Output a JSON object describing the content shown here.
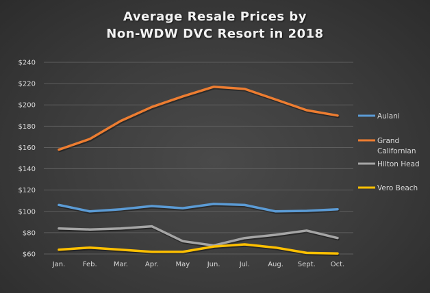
{
  "chart_data": {
    "type": "line",
    "title": "Average Resale Prices by Non-WDW DVC Resort in 2018",
    "title_lines": [
      "Average Resale Prices by",
      "Non-WDW  DVC Resort in 2018"
    ],
    "xlabel": "",
    "ylabel": "",
    "categories": [
      "Jan.",
      "Feb.",
      "Mar.",
      "Apr.",
      "May",
      "Jun.",
      "Jul.",
      "Aug.",
      "Sept.",
      "Oct."
    ],
    "ylim": [
      60,
      240
    ],
    "yticks": [
      60,
      80,
      100,
      120,
      140,
      160,
      180,
      200,
      220,
      240
    ],
    "ytick_labels": [
      "$60",
      "$80",
      "$100",
      "$120",
      "$140",
      "$160",
      "$180",
      "$200",
      "$220",
      "$240"
    ],
    "grid": true,
    "legend_position": "right",
    "series": [
      {
        "name": "Aulani",
        "legend_lines": [
          "Aulani"
        ],
        "color": "#5b9bd5",
        "values": [
          106,
          100,
          102,
          105,
          103,
          107,
          106,
          100,
          100.5,
          102
        ]
      },
      {
        "name": "Grand Californian",
        "legend_lines": [
          "Grand",
          "Californian"
        ],
        "color": "#ed7d31",
        "values": [
          158,
          168,
          185,
          198,
          208,
          217,
          215,
          205,
          195,
          190
        ]
      },
      {
        "name": "Hilton Head",
        "legend_lines": [
          "Hilton Head"
        ],
        "color": "#a5a5a5",
        "values": [
          84,
          83,
          84,
          86,
          72,
          68,
          75,
          78,
          82,
          75
        ]
      },
      {
        "name": "Vero Beach",
        "legend_lines": [
          "Vero Beach"
        ],
        "color": "#ffc000",
        "values": [
          64,
          66,
          64,
          62,
          62,
          67,
          69,
          66,
          61,
          60.5
        ]
      }
    ]
  }
}
